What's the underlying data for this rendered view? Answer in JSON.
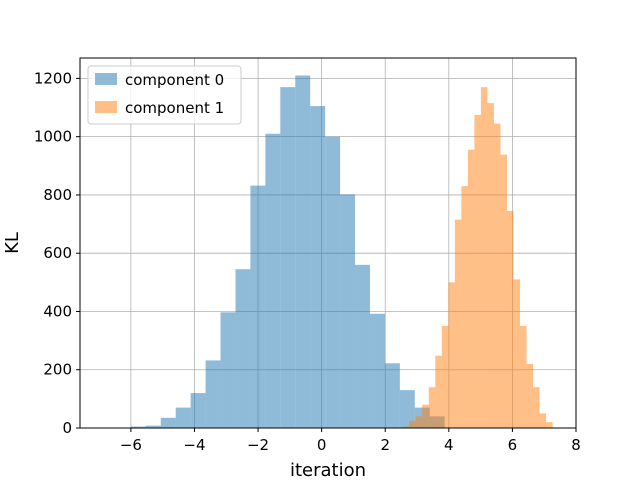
{
  "chart_data": {
    "type": "bar",
    "subtype": "histogram",
    "xlabel": "iteration",
    "ylabel": "KL",
    "xlim": [
      -7.6,
      8.0
    ],
    "ylim": [
      0,
      1270
    ],
    "grid": true,
    "legend_position": "top-left",
    "x_ticks": [
      -6,
      -4,
      -2,
      0,
      2,
      4,
      6,
      8
    ],
    "y_ticks": [
      0,
      200,
      400,
      600,
      800,
      1000,
      1200
    ],
    "series": [
      {
        "name": "component 0",
        "color": "#1f77b4",
        "opacity": 0.5,
        "bin_edges": [
          -6.0,
          -5.53,
          -5.06,
          -4.59,
          -4.12,
          -3.65,
          -3.18,
          -2.71,
          -2.24,
          -1.77,
          -1.3,
          -0.83,
          -0.36,
          0.11,
          0.58,
          1.05,
          1.52,
          1.99,
          2.46,
          2.93,
          3.4,
          3.87
        ],
        "counts": [
          5,
          8,
          35,
          70,
          120,
          232,
          397,
          545,
          832,
          1010,
          1170,
          1210,
          1105,
          1000,
          802,
          560,
          392,
          222,
          130,
          70,
          40
        ]
      },
      {
        "name": "component 1",
        "color": "#ff7f0e",
        "opacity": 0.5,
        "bin_edges": [
          2.55,
          2.755,
          2.96,
          3.165,
          3.37,
          3.575,
          3.78,
          3.985,
          4.19,
          4.395,
          4.6,
          4.805,
          5.01,
          5.215,
          5.42,
          5.625,
          5.83,
          6.035,
          6.24,
          6.445,
          6.65,
          6.855,
          7.06,
          7.265
        ],
        "counts": [
          5,
          25,
          40,
          80,
          140,
          248,
          350,
          500,
          715,
          830,
          955,
          1075,
          1170,
          1115,
          1045,
          938,
          745,
          510,
          350,
          220,
          140,
          50,
          20
        ]
      }
    ]
  }
}
